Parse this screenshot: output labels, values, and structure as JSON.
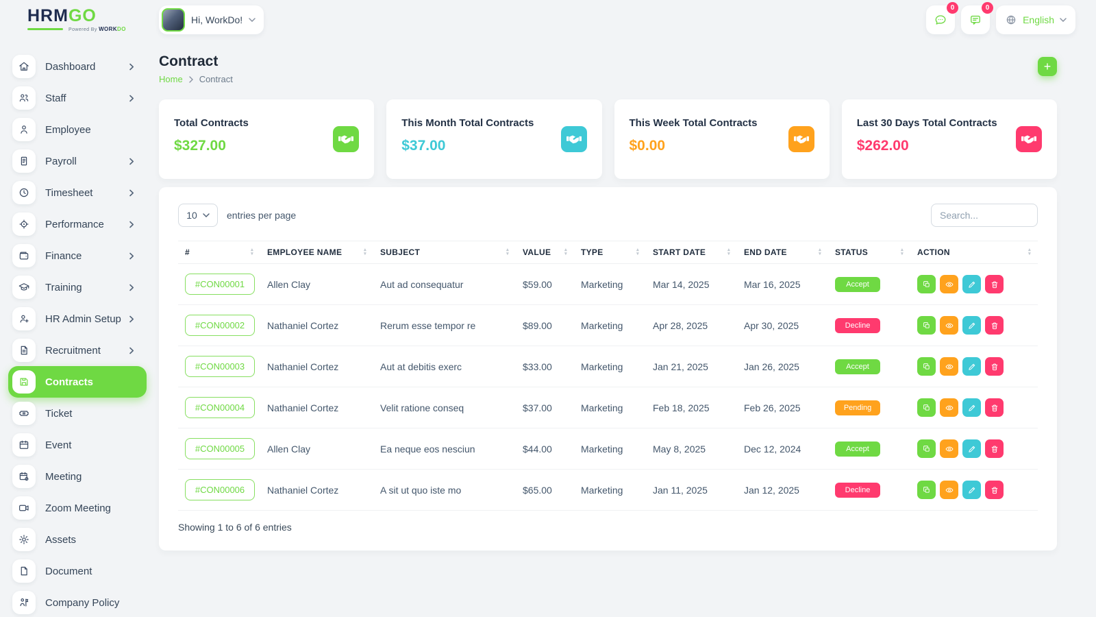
{
  "brand": {
    "name_primary": "HRM",
    "name_secondary": "GO",
    "powered_by": "Powered By",
    "powered_brand_dark": "WORK",
    "powered_brand_green": "DO"
  },
  "topbar": {
    "greeting": "Hi, WorkDo!",
    "chat_badge": "0",
    "messages_badge": "0",
    "language": "English"
  },
  "sidebar": {
    "items": [
      {
        "label": "Dashboard",
        "icon": "home-icon",
        "chevron": true,
        "active": false
      },
      {
        "label": "Staff",
        "icon": "staff-icon",
        "chevron": true,
        "active": false
      },
      {
        "label": "Employee",
        "icon": "employee-icon",
        "chevron": false,
        "active": false
      },
      {
        "label": "Payroll",
        "icon": "payroll-icon",
        "chevron": true,
        "active": false
      },
      {
        "label": "Timesheet",
        "icon": "timesheet-icon",
        "chevron": true,
        "active": false
      },
      {
        "label": "Performance",
        "icon": "performance-icon",
        "chevron": true,
        "active": false
      },
      {
        "label": "Finance",
        "icon": "finance-icon",
        "chevron": true,
        "active": false
      },
      {
        "label": "Training",
        "icon": "training-icon",
        "chevron": true,
        "active": false
      },
      {
        "label": "HR Admin Setup",
        "icon": "hr-admin-setup-icon",
        "chevron": true,
        "active": false
      },
      {
        "label": "Recruitment",
        "icon": "recruitment-icon",
        "chevron": true,
        "active": false
      },
      {
        "label": "Contracts",
        "icon": "contracts-icon",
        "chevron": false,
        "active": true
      },
      {
        "label": "Ticket",
        "icon": "ticket-icon",
        "chevron": false,
        "active": false
      },
      {
        "label": "Event",
        "icon": "event-icon",
        "chevron": false,
        "active": false
      },
      {
        "label": "Meeting",
        "icon": "meeting-icon",
        "chevron": false,
        "active": false
      },
      {
        "label": "Zoom Meeting",
        "icon": "zoom-meeting-icon",
        "chevron": false,
        "active": false
      },
      {
        "label": "Assets",
        "icon": "assets-icon",
        "chevron": false,
        "active": false
      },
      {
        "label": "Document",
        "icon": "document-icon",
        "chevron": false,
        "active": false
      },
      {
        "label": "Company Policy",
        "icon": "company-policy-icon",
        "chevron": false,
        "active": false
      }
    ]
  },
  "page": {
    "title": "Contract",
    "breadcrumb_home": "Home",
    "breadcrumb_current": "Contract",
    "add_label": "+"
  },
  "stats": [
    {
      "label": "Total Contracts",
      "value": "$327.00",
      "color": "#6fd943",
      "icon": "handshake-icon"
    },
    {
      "label": "This Month Total Contracts",
      "value": "$37.00",
      "color": "#3ec9d6",
      "icon": "handshake-icon"
    },
    {
      "label": "This Week Total Contracts",
      "value": "$0.00",
      "color": "#ffa21d",
      "icon": "handshake-icon"
    },
    {
      "label": "Last 30 Days Total Contracts",
      "value": "$262.00",
      "color": "#ff3a6e",
      "icon": "handshake-icon"
    }
  ],
  "table": {
    "entries_value": "10",
    "entries_label": "entries per page",
    "search_placeholder": "Search...",
    "columns": [
      "#",
      "EMPLOYEE NAME",
      "SUBJECT",
      "VALUE",
      "TYPE",
      "START DATE",
      "END DATE",
      "STATUS",
      "ACTION"
    ],
    "actions": [
      {
        "name": "duplicate-button",
        "icon": "copy-icon",
        "color": "#6fd943"
      },
      {
        "name": "view-button",
        "icon": "eye-icon",
        "color": "#ffa21d"
      },
      {
        "name": "edit-button",
        "icon": "pencil-icon",
        "color": "#3ec9d6"
      },
      {
        "name": "delete-button",
        "icon": "trash-icon",
        "color": "#ff3a6e"
      }
    ],
    "rows": [
      {
        "id": "#CON00001",
        "employee": "Allen Clay",
        "subject": "Aut ad consequatur",
        "value": "$59.00",
        "type": "Marketing",
        "start": "Mar 14, 2025",
        "end": "Mar 16, 2025",
        "status": "Accept",
        "status_color": "#6fd943"
      },
      {
        "id": "#CON00002",
        "employee": "Nathaniel Cortez",
        "subject": "Rerum esse tempor re",
        "value": "$89.00",
        "type": "Marketing",
        "start": "Apr 28, 2025",
        "end": "Apr 30, 2025",
        "status": "Decline",
        "status_color": "#ff3a6e"
      },
      {
        "id": "#CON00003",
        "employee": "Nathaniel Cortez",
        "subject": "Aut at debitis exerc",
        "value": "$33.00",
        "type": "Marketing",
        "start": "Jan 21, 2025",
        "end": "Jan 26, 2025",
        "status": "Accept",
        "status_color": "#6fd943"
      },
      {
        "id": "#CON00004",
        "employee": "Nathaniel Cortez",
        "subject": "Velit ratione conseq",
        "value": "$37.00",
        "type": "Marketing",
        "start": "Feb 18, 2025",
        "end": "Feb 26, 2025",
        "status": "Pending",
        "status_color": "#ffa21d"
      },
      {
        "id": "#CON00005",
        "employee": "Allen Clay",
        "subject": "Ea neque eos nesciun",
        "value": "$44.00",
        "type": "Marketing",
        "start": "May 8, 2025",
        "end": "Dec 12, 2024",
        "status": "Accept",
        "status_color": "#6fd943"
      },
      {
        "id": "#CON00006",
        "employee": "Nathaniel Cortez",
        "subject": "A sit ut quo iste mo",
        "value": "$65.00",
        "type": "Marketing",
        "start": "Jan 11, 2025",
        "end": "Jan 12, 2025",
        "status": "Decline",
        "status_color": "#ff3a6e"
      }
    ],
    "footer": "Showing 1 to 6 of 6 entries"
  },
  "colors": {
    "primary": "#6fd943",
    "cyan": "#3ec9d6",
    "orange": "#ffa21d",
    "pink": "#ff3a6e"
  }
}
